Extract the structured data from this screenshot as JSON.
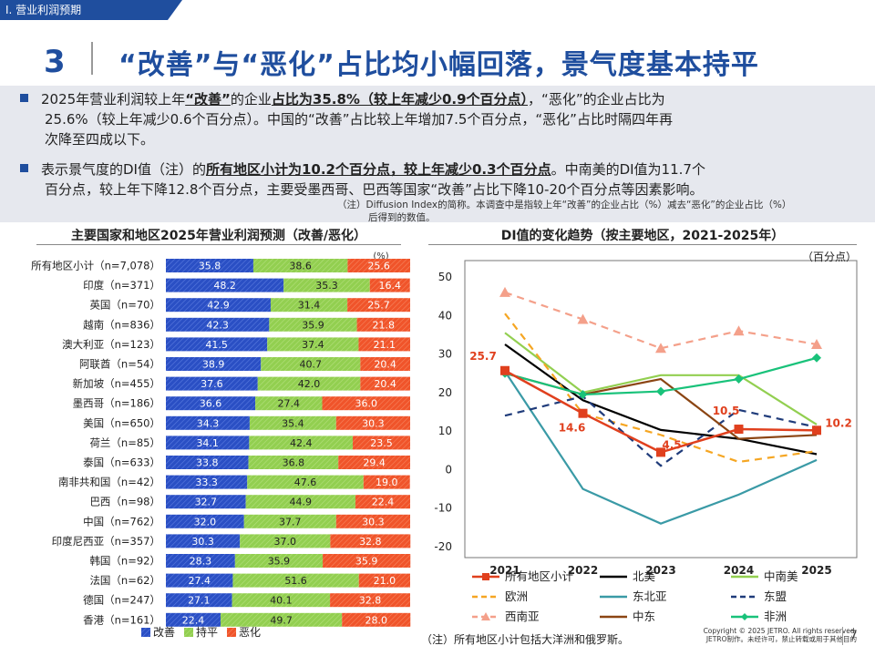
{
  "header": {
    "section": "Ⅰ. 营业利润预期",
    "slide_number": "3",
    "title": "“改善”与“恶化”占比均小幅回落，景气度基本持平"
  },
  "summary": {
    "b1_p1": "2025年营业利润较上年",
    "b1_p2": "“改善”",
    "b1_p3": "的企业",
    "b1_p4": "占比为35.8%（较上年减少0.9个百分点）",
    "b1_p5": "，“恶化”的企业占比为",
    "b1_line2": "25.6%（较上年减少0.6个百分点）。中国的“改善”占比较上年增加7.5个百分点，“恶化”占比时隔四年再",
    "b1_line3": "次降至四成以下。",
    "b2_p1": "表示景气度的DI值（注）的",
    "b2_p2": "所有地区小计为10.2个百分点，较上年减少0.3个百分点",
    "b2_p3": "。中南美的DI值为11.7个",
    "b2_line2": "百分点，较上年下降12.8个百分点，主要受墨西哥、巴西等国家“改善”占比下降10-20个百分点等因素影响。"
  },
  "note_top": {
    "line1": "（注）Diffusion Index的简称。本调查中是指较上年“改善”的企业占比（%）减去“恶化”的企业占比（%）",
    "line2": "后得到的数值。"
  },
  "left_title": "主要国家和地区2025年营业利润预测（改善/恶化）",
  "right_title": "DI值的变化趋势（按主要地区，2021-2025年）",
  "footer_note": "（注）所有地区小计包括大洋洲和俄罗斯。",
  "copyright": {
    "line1": "Copyright © 2025 JETRO. All rights reserved.",
    "line2": "JETRO制作。未经许可，禁止转载或用于其他目的"
  },
  "page_number": "7",
  "colors": {
    "improve": "#2a4fc4",
    "flat": "#92cf50",
    "worsen": "#f0542a",
    "brand": "#1f4e9e"
  },
  "chart_data": [
    {
      "type": "bar",
      "stacked": true,
      "orientation": "horizontal",
      "title": "主要国家和地区2025年营业利润预测（改善/恶化）",
      "unit": "(%)",
      "categories": [
        "所有地区小计（n=7,078）",
        "印度（n=371）",
        "英国（n=70）",
        "越南（n=836）",
        "澳大利亚（n=123）",
        "阿联酋（n=54）",
        "新加坡（n=455）",
        "墨西哥（n=186）",
        "美国（n=650）",
        "荷兰（n=85）",
        "泰国（n=633）",
        "南非共和国（n=42）",
        "巴西（n=98）",
        "中国（n=762）",
        "印度尼西亚（n=357）",
        "韩国（n=92）",
        "法国（n=62）",
        "德国（n=247）",
        "香港（n=161）"
      ],
      "series": [
        {
          "name": "改善",
          "values": [
            35.8,
            48.2,
            42.9,
            42.3,
            41.5,
            38.9,
            37.6,
            36.6,
            34.3,
            34.1,
            33.8,
            33.3,
            32.7,
            32.0,
            30.3,
            28.3,
            27.4,
            27.1,
            22.4
          ]
        },
        {
          "name": "持平",
          "values": [
            38.6,
            35.3,
            31.4,
            35.9,
            37.4,
            40.7,
            42.0,
            27.4,
            35.4,
            42.4,
            36.8,
            47.6,
            44.9,
            37.7,
            37.0,
            35.9,
            51.6,
            40.1,
            49.7
          ]
        },
        {
          "name": "恶化",
          "values": [
            25.6,
            16.4,
            25.7,
            21.8,
            21.1,
            20.4,
            20.4,
            36.0,
            30.3,
            23.5,
            29.4,
            19.0,
            22.4,
            30.3,
            32.8,
            35.9,
            21.0,
            32.8,
            28.0
          ]
        }
      ],
      "legend": [
        "改善",
        "持平",
        "恶化"
      ]
    },
    {
      "type": "line",
      "title": "DI值的变化趋势（按主要地区，2021-2025年）",
      "unit": "（百分点）",
      "x": [
        "2021",
        "2022",
        "2023",
        "2024",
        "2025"
      ],
      "ylim": [
        -20,
        50
      ],
      "yticks": [
        "50",
        "40",
        "30",
        "20",
        "10",
        "0",
        "-10",
        "-20"
      ],
      "series": [
        {
          "name": "所有地区小计",
          "color": "#e0401e",
          "dash": "solid",
          "marker": "square",
          "values": [
            25.7,
            14.6,
            4.5,
            10.5,
            10.2
          ]
        },
        {
          "name": "北美",
          "color": "#000000",
          "dash": "solid",
          "marker": "none",
          "values": [
            32.5,
            18.0,
            10.3,
            8.0,
            4.0
          ]
        },
        {
          "name": "中南美",
          "color": "#92cf50",
          "dash": "solid",
          "marker": "none",
          "values": [
            35.5,
            20.0,
            24.5,
            24.5,
            11.7
          ]
        },
        {
          "name": "欧洲",
          "color": "#f5a623",
          "dash": "dash",
          "marker": "none",
          "values": [
            40.5,
            14.5,
            9.0,
            2.0,
            4.8
          ]
        },
        {
          "name": "东北亚",
          "color": "#3a9aa6",
          "dash": "solid",
          "marker": "none",
          "values": [
            25.5,
            -5.0,
            -14.0,
            -6.5,
            2.5
          ]
        },
        {
          "name": "东盟",
          "color": "#1f3b7a",
          "dash": "dash",
          "marker": "none",
          "values": [
            14.0,
            19.0,
            1.0,
            15.5,
            11.0
          ]
        },
        {
          "name": "西南亚",
          "color": "#f4a08a",
          "dash": "dash",
          "marker": "triangle",
          "values": [
            46.0,
            39.0,
            31.5,
            36.0,
            32.5
          ]
        },
        {
          "name": "中东",
          "color": "#8b4513",
          "dash": "solid",
          "marker": "none",
          "values": [
            25.0,
            19.5,
            23.5,
            8.0,
            9.0
          ]
        },
        {
          "name": "非洲",
          "color": "#19c27a",
          "dash": "solid",
          "marker": "diamond",
          "values": [
            25.0,
            19.5,
            20.3,
            23.5,
            29.0
          ]
        }
      ],
      "annotations": [
        "25.7",
        "14.6",
        "4.5",
        "10.5",
        "10.2"
      ]
    }
  ]
}
